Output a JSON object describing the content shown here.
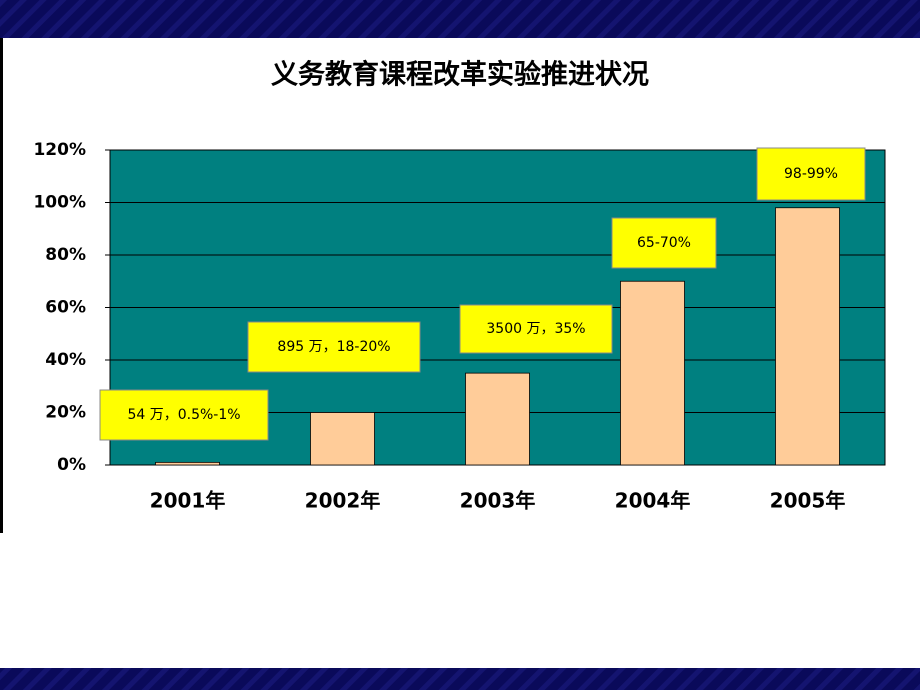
{
  "chart_data": {
    "type": "bar",
    "title": "义务教育课程改革实验推进状况",
    "categories": [
      "2001年",
      "2002年",
      "2003年",
      "2004年",
      "2005年"
    ],
    "values": [
      1,
      20,
      35,
      70,
      98
    ],
    "color": "#ffcc99",
    "plot_background": "#008080",
    "grid": true,
    "ylim": [
      0,
      120
    ],
    "yticks": [
      {
        "value": 0,
        "label": "0%"
      },
      {
        "value": 20,
        "label": "20%"
      },
      {
        "value": 40,
        "label": "40%"
      },
      {
        "value": 60,
        "label": "60%"
      },
      {
        "value": 80,
        "label": "80%"
      },
      {
        "value": 100,
        "label": "100%"
      },
      {
        "value": 120,
        "label": "120%"
      }
    ],
    "annotations": [
      "54 万，0.5%-1%",
      "895 万，18-20%",
      "3500 万，35%",
      "65-70%",
      "98-99%"
    ]
  }
}
